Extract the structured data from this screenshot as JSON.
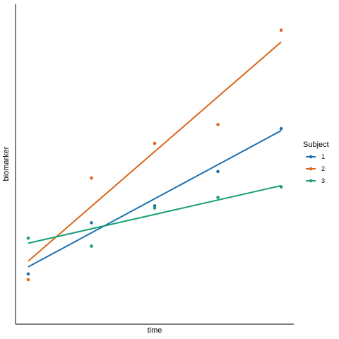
{
  "chart_data": {
    "type": "scatter",
    "xlabel": "time",
    "ylabel": "biomarker",
    "x": [
      1,
      2,
      3,
      4,
      5
    ],
    "xlim": [
      0.8,
      5.2
    ],
    "ylim": [
      0,
      10
    ],
    "grid": false,
    "legend": {
      "title": "Subject",
      "placement": "right"
    },
    "series": [
      {
        "name": "1",
        "color": "#1f6fad",
        "points": [
          1.57,
          3.17,
          3.7,
          4.77,
          6.11
        ],
        "fit": [
          1.79,
          6.05
        ]
      },
      {
        "name": "2",
        "color": "#d9661f",
        "points": [
          1.39,
          4.57,
          5.65,
          6.24,
          9.19
        ],
        "fit": [
          1.97,
          8.82
        ]
      },
      {
        "name": "3",
        "color": "#1a9e77",
        "points": [
          2.69,
          2.44,
          3.63,
          3.96,
          4.29
        ],
        "fit": [
          2.53,
          4.33
        ]
      }
    ]
  }
}
